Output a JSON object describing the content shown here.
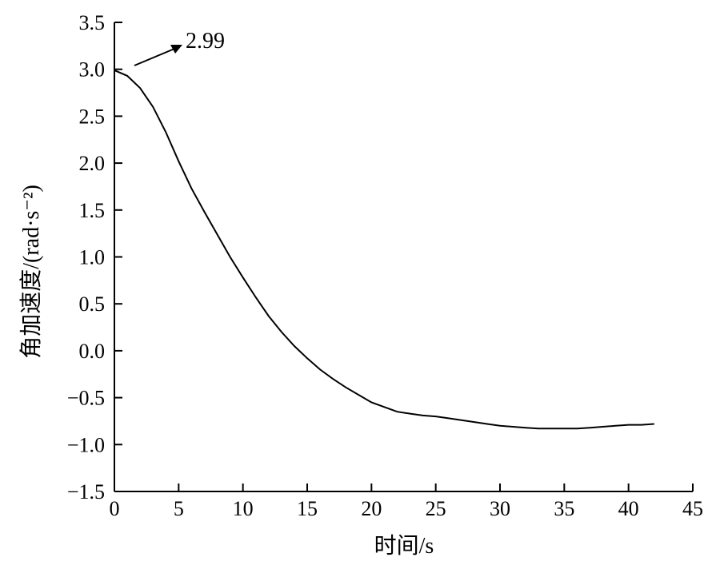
{
  "chart_data": {
    "type": "line",
    "xlabel": "时间/s",
    "ylabel": "角加速度/(rad·s⁻²)",
    "xlim": [
      0,
      45
    ],
    "ylim": [
      -1.5,
      3.5
    ],
    "x_ticks": [
      "0",
      "5",
      "10",
      "15",
      "20",
      "25",
      "30",
      "35",
      "40",
      "45"
    ],
    "y_ticks": [
      "3.5",
      "3.0",
      "2.5",
      "2.0",
      "1.5",
      "1.0",
      "0.5",
      "0.0",
      "−0.5",
      "−1.0",
      "−1.5"
    ],
    "grid": false,
    "legend": "none",
    "line_color": "#000000",
    "series": [
      {
        "x": [
          0,
          1,
          2,
          3,
          4,
          5,
          6,
          7,
          8,
          9,
          10,
          11,
          12,
          13,
          14,
          15,
          16,
          17,
          18,
          19,
          20,
          21,
          22,
          23,
          24,
          25,
          26,
          27,
          28,
          29,
          30,
          31,
          32,
          33,
          34,
          35,
          36,
          37,
          38,
          39,
          40,
          41,
          42
        ],
        "y": [
          2.99,
          2.93,
          2.8,
          2.6,
          2.33,
          2.02,
          1.73,
          1.48,
          1.24,
          1.0,
          0.78,
          0.57,
          0.37,
          0.2,
          0.05,
          -0.08,
          -0.2,
          -0.3,
          -0.39,
          -0.47,
          -0.55,
          -0.6,
          -0.65,
          -0.67,
          -0.69,
          -0.7,
          -0.72,
          -0.74,
          -0.76,
          -0.78,
          -0.8,
          -0.81,
          -0.82,
          -0.83,
          -0.83,
          -0.83,
          -0.83,
          -0.82,
          -0.81,
          -0.8,
          -0.79,
          -0.79,
          -0.78
        ]
      }
    ],
    "annotations": [
      {
        "text": "2.99",
        "x": 0,
        "y": 2.99
      }
    ]
  }
}
